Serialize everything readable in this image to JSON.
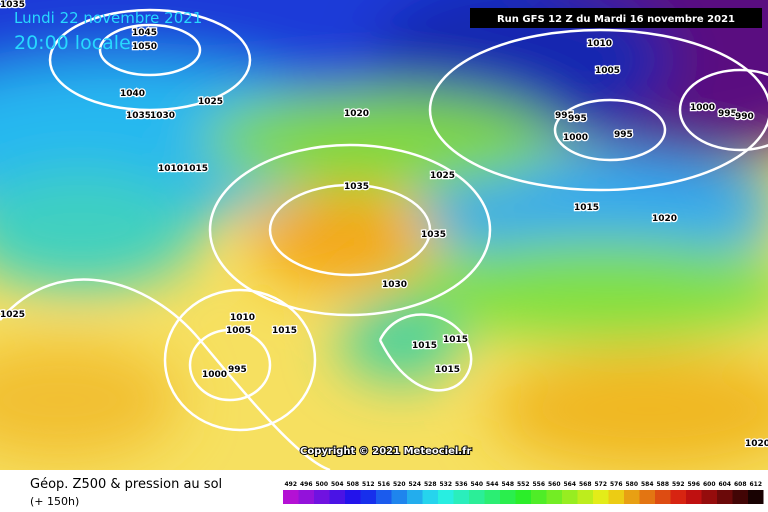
{
  "header": {
    "valid_date": "Lundi 22 novembre 2021",
    "local_time": "20:00 locale",
    "run": "Run GFS 12 Z du Mardi 16 novembre 2021"
  },
  "isobars": {
    "labels": [
      1035,
      1045,
      1050,
      1040,
      1035,
      1030,
      1025,
      1020,
      1010,
      1015,
      1035,
      1025,
      1035,
      1030,
      1025,
      1010,
      1005,
      1015,
      995,
      1000,
      1015,
      1015,
      1015,
      1010,
      1005,
      995,
      995,
      1000,
      995,
      1015,
      1020,
      1000,
      995,
      990,
      1020
    ]
  },
  "copyright": "Copyright © 2021 Meteociel.fr",
  "footer": {
    "title": "Géop. Z500 & pression au sol",
    "lead": "(+ 150h)"
  },
  "legend": {
    "scale": [
      492,
      496,
      500,
      504,
      508,
      512,
      516,
      520,
      524,
      528,
      532,
      536,
      540,
      544,
      548,
      552,
      556,
      560,
      564,
      568,
      572,
      576,
      580,
      584,
      588,
      592,
      596,
      600,
      604,
      608,
      612
    ]
  }
}
